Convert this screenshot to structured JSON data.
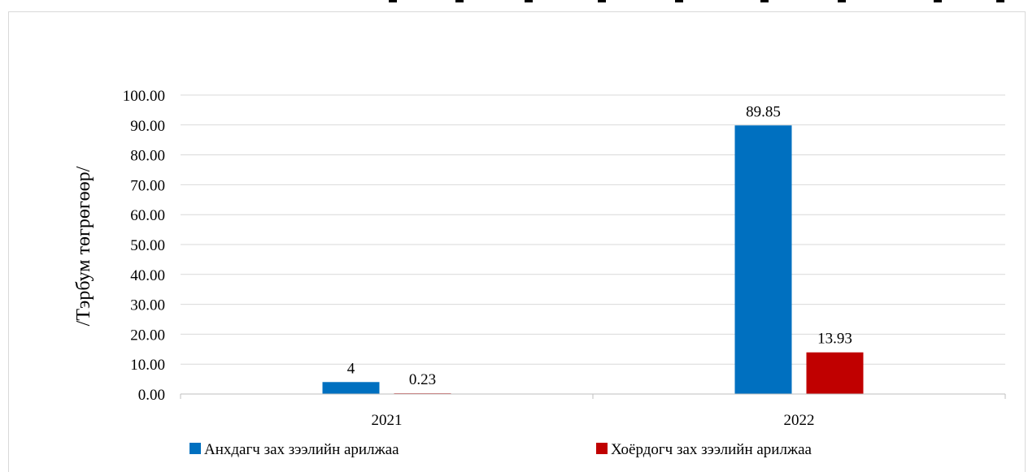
{
  "chart_data": {
    "type": "bar",
    "categories": [
      "2021",
      "2022"
    ],
    "series": [
      {
        "name": "Анхдагч зах зээлийн арилжаа",
        "values": [
          4,
          89.85
        ],
        "labels": [
          "4",
          "89.85"
        ],
        "color": "#0070c0"
      },
      {
        "name": "Хоёрдогч зах зээлийн арилжаа",
        "values": [
          0.23,
          13.93
        ],
        "labels": [
          "0.23",
          "13.93"
        ],
        "color": "#c00000"
      }
    ],
    "ylabel": "/Тэрбум төгрөгөөр/",
    "ylim": [
      0,
      100
    ],
    "ytick_step": 10,
    "ytick_labels": [
      "0.00",
      "10.00",
      "20.00",
      "30.00",
      "40.00",
      "50.00",
      "60.00",
      "70.00",
      "80.00",
      "90.00",
      "100.00"
    ],
    "grid": true,
    "legend_position": "bottom"
  }
}
